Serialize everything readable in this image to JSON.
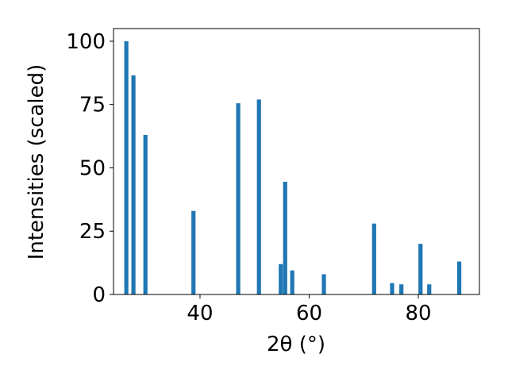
{
  "chart_data": {
    "type": "bar",
    "xlabel": "2θ (°)",
    "ylabel": "Intensities (scaled)",
    "x": [
      26.5,
      27.8,
      30.0,
      38.8,
      47.0,
      50.8,
      54.8,
      55.6,
      56.9,
      62.7,
      71.9,
      75.2,
      76.9,
      80.4,
      82.0,
      87.5
    ],
    "values": [
      100,
      86.5,
      63,
      33,
      75.5,
      77,
      12,
      44.5,
      9.5,
      8,
      28,
      4.5,
      4,
      20,
      4,
      13
    ],
    "color": "#1f77b4",
    "xlim": [
      24.15,
      91.2
    ],
    "xticks": [
      40,
      60,
      80
    ],
    "ylim": [
      0,
      105
    ],
    "yticks": [
      0,
      25,
      50,
      75,
      100
    ]
  }
}
